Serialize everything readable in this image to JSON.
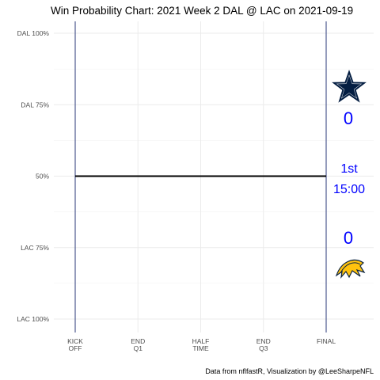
{
  "chart_data": {
    "type": "line",
    "title": "Win Probability Chart: 2021 Week 2 DAL @ LAC on 2021-09-19",
    "y_ticks": [
      "DAL 100%",
      "DAL 75%",
      "50%",
      "LAC 75%",
      "LAC 100%"
    ],
    "x_ticks": [
      {
        "line1": "KICK",
        "line2": "OFF"
      },
      {
        "line1": "END",
        "line2": "Q1"
      },
      {
        "line1": "HALF",
        "line2": "TIME"
      },
      {
        "line1": "END",
        "line2": "Q3"
      },
      {
        "line1": "FINAL",
        "line2": ""
      }
    ],
    "xlim": [
      0,
      3600
    ],
    "ylim": [
      -1,
      1
    ],
    "series": [
      {
        "x": [
          0,
          3600
        ],
        "y": [
          0,
          0
        ],
        "color": "#000000"
      }
    ],
    "grid": true,
    "caption": "Data from nflfastR, Visualization by @LeeSharpeNFL"
  },
  "scoreboard": {
    "home_score": "0",
    "away_score": "0",
    "quarter": "1st",
    "clock": "15:00",
    "text_color": "#0000ff"
  },
  "teams": {
    "top": {
      "icon": "cowboys-star-icon",
      "color": "#041e42"
    },
    "bottom": {
      "icon": "chargers-bolt-icon",
      "color": "#0080c6",
      "accent": "#ffc20e"
    }
  }
}
